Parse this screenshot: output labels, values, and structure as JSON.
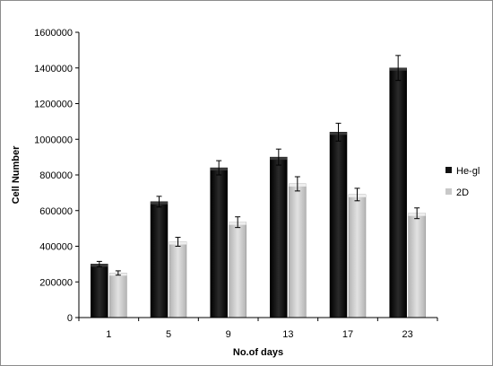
{
  "chart_data": {
    "type": "bar",
    "title": "",
    "xlabel": "No.of days",
    "ylabel": "Cell Number",
    "categories": [
      "1",
      "5",
      "9",
      "13",
      "17",
      "23"
    ],
    "ylim": [
      0,
      1600000
    ],
    "yticks": [
      0,
      200000,
      400000,
      600000,
      800000,
      1000000,
      1200000,
      1400000,
      1600000
    ],
    "grid": false,
    "legend_position": "right",
    "series": [
      {
        "name": "He-gl",
        "color": "#111111",
        "values": [
          300000,
          650000,
          840000,
          900000,
          1040000,
          1400000
        ],
        "errors": [
          15000,
          30000,
          40000,
          45000,
          50000,
          70000
        ]
      },
      {
        "name": "2D",
        "color": "#c8c8c8",
        "values": [
          250000,
          425000,
          535000,
          750000,
          690000,
          585000
        ],
        "errors": [
          12000,
          25000,
          30000,
          40000,
          35000,
          30000
        ]
      }
    ]
  }
}
